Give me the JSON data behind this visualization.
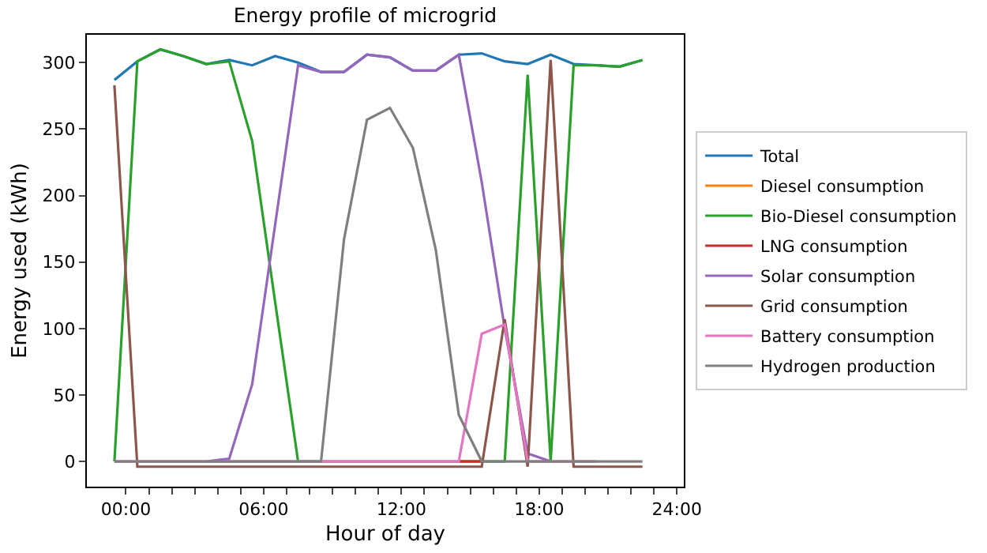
{
  "chart_data": {
    "type": "line",
    "title": "Energy profile of microgrid",
    "xlabel": "Hour of day",
    "ylabel": "Energy used (kWh)",
    "x": [
      -0.5,
      0.5,
      1.5,
      2.5,
      3.5,
      4.5,
      5.5,
      6.5,
      7.5,
      8.5,
      9.5,
      10.5,
      11.5,
      12.5,
      13.5,
      14.5,
      15.5,
      16.5,
      17.5,
      18.5,
      19.5,
      20.5,
      21.5,
      22.5
    ],
    "series": [
      {
        "name": "Total",
        "color": "#1f77b4",
        "values": [
          287,
          301,
          310,
          305,
          299,
          302,
          298,
          305,
          300,
          293,
          293,
          306,
          304,
          294,
          294,
          306,
          307,
          301,
          299,
          306,
          299,
          298,
          297,
          302
        ]
      },
      {
        "name": "Diesel consumption",
        "color": "#ff7f0e",
        "values": [
          null,
          null,
          null,
          null,
          null,
          null,
          null,
          null,
          null,
          null,
          null,
          null,
          null,
          null,
          null,
          null,
          null,
          null,
          null,
          null,
          null,
          null,
          null,
          null
        ]
      },
      {
        "name": "Bio-Diesel consumption",
        "color": "#2ca02c",
        "values": [
          0,
          301,
          310,
          305,
          299,
          301,
          241,
          120,
          0,
          0,
          0,
          0,
          0,
          0,
          0,
          0,
          0,
          0,
          291,
          0,
          298,
          298,
          297,
          302
        ]
      },
      {
        "name": "LNG consumption",
        "color": "#d62728",
        "values": [
          null,
          null,
          null,
          null,
          null,
          null,
          null,
          null,
          null,
          null,
          null,
          null,
          null,
          null,
          null,
          0,
          0,
          null,
          null,
          null,
          null,
          null,
          null,
          null
        ]
      },
      {
        "name": "Solar consumption",
        "color": "#9467bd",
        "values": [
          null,
          null,
          null,
          null,
          0,
          2,
          58,
          178,
          298,
          293,
          293,
          306,
          304,
          294,
          294,
          306,
          210,
          100,
          6,
          0,
          null,
          null,
          null,
          null
        ]
      },
      {
        "name": "Grid consumption",
        "color": "#8c564b",
        "values": [
          283,
          -4,
          -4,
          -4,
          -4,
          -4,
          -4,
          -4,
          -4,
          -4,
          -4,
          -4,
          -4,
          -4,
          -4,
          -4,
          -4,
          107,
          -4,
          302,
          -4,
          -4,
          -4,
          -4
        ]
      },
      {
        "name": "Battery consumption",
        "color": "#e377c2",
        "values": [
          0,
          0,
          0,
          0,
          0,
          0,
          0,
          0,
          0,
          0,
          0,
          0,
          0,
          0,
          0,
          0,
          96,
          103,
          0,
          0,
          0,
          0,
          null,
          null
        ]
      },
      {
        "name": "Hydrogen production",
        "color": "#7f7f7f",
        "values": [
          0,
          0,
          0,
          0,
          0,
          0,
          0,
          0,
          0,
          0,
          167,
          257,
          266,
          236,
          159,
          35,
          0,
          0,
          0,
          0,
          0,
          0,
          0,
          0
        ]
      }
    ],
    "xlim": [
      -1.7,
      24.3
    ],
    "xticks": [
      {
        "value": 0,
        "label": "00:00"
      },
      {
        "value": 1,
        "label": null
      },
      {
        "value": 2,
        "label": null
      },
      {
        "value": 3,
        "label": null
      },
      {
        "value": 4,
        "label": null
      },
      {
        "value": 5,
        "label": null
      },
      {
        "value": 6,
        "label": "06:00"
      },
      {
        "value": 7,
        "label": null
      },
      {
        "value": 8,
        "label": null
      },
      {
        "value": 9,
        "label": null
      },
      {
        "value": 10,
        "label": null
      },
      {
        "value": 11,
        "label": null
      },
      {
        "value": 12,
        "label": "12:00"
      },
      {
        "value": 13,
        "label": null
      },
      {
        "value": 14,
        "label": null
      },
      {
        "value": 15,
        "label": null
      },
      {
        "value": 16,
        "label": null
      },
      {
        "value": 17,
        "label": null
      },
      {
        "value": 18,
        "label": "18:00"
      },
      {
        "value": 19,
        "label": null
      },
      {
        "value": 20,
        "label": null
      },
      {
        "value": 21,
        "label": null
      },
      {
        "value": 22,
        "label": null
      },
      {
        "value": 23,
        "label": null
      },
      {
        "value": 24,
        "label": "24:00"
      }
    ],
    "ylim": [
      -19,
      321
    ],
    "yticks": [
      0,
      50,
      100,
      150,
      200,
      250,
      300
    ],
    "grid": false,
    "legend": "right",
    "marker": "none",
    "line_style": "solid"
  }
}
